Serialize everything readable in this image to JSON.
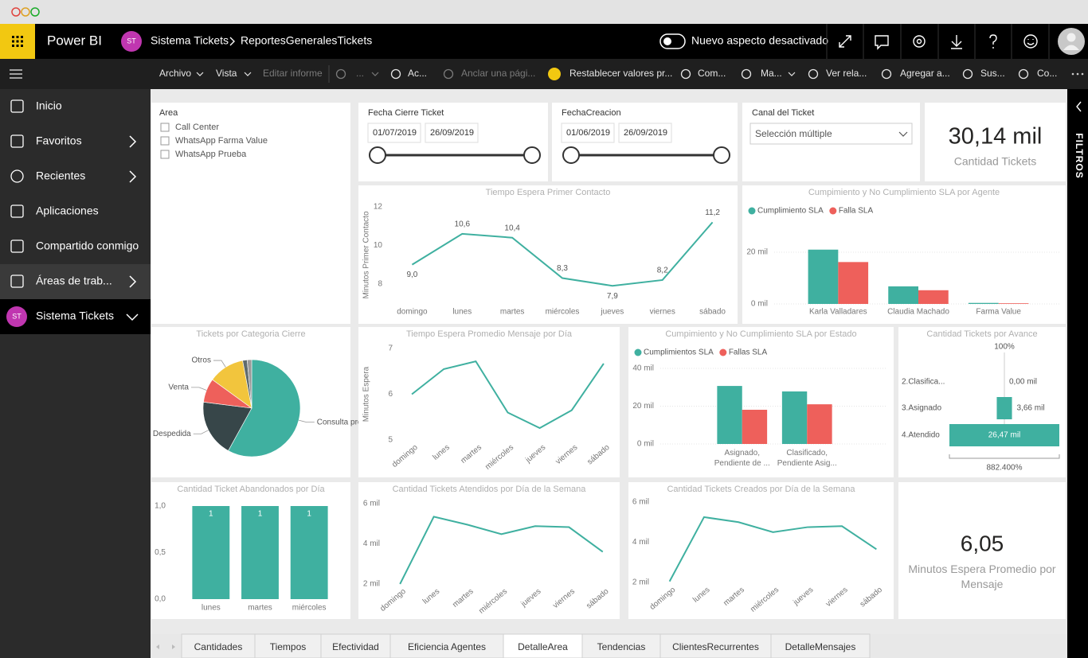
{
  "header": {
    "app_name": "Power BI",
    "avatar": "ST",
    "workspace": "Sistema Tickets",
    "report": "ReportesGeneralesTickets",
    "toggle_label": "Nuevo aspecto desactivado"
  },
  "toolbar": {
    "items": [
      {
        "text": "Archivo"
      },
      {
        "text": "Vista"
      },
      {
        "text": "Editar informe",
        "disabled": true
      },
      {
        "text": "...",
        "disabled": true
      },
      {
        "text": "Ac..."
      },
      {
        "text": "Anclar una pági...",
        "disabled": true
      },
      {
        "text": "Restablecer valores pr..."
      },
      {
        "text": "Com..."
      },
      {
        "text": "Ma..."
      },
      {
        "text": "Ver rela..."
      },
      {
        "text": "Agregar a..."
      },
      {
        "text": "Sus..."
      },
      {
        "text": "Co..."
      }
    ]
  },
  "nav": {
    "items": [
      "Inicio",
      "Favoritos",
      "Recientes",
      "Aplicaciones",
      "Compartido conmigo",
      "Áreas de trab...",
      "Sistema Tickets"
    ],
    "workspace_avatar": "ST"
  },
  "filters_pane": {
    "label": "FILTROS"
  },
  "slicers": [
    {
      "title": "Area",
      "items": [
        "Call Center",
        "WhatsApp Farma Value",
        "WhatsApp Prueba"
      ]
    },
    {
      "title": "Fecha Cierre Ticket",
      "start": "01/07/2019",
      "end": "26/09/2019"
    },
    {
      "title": "FechaCreacion",
      "start": "01/06/2019",
      "end": "26/09/2019"
    },
    {
      "title": "Canal del Ticket",
      "selection": "Selección múltiple"
    }
  ],
  "cards": [
    {
      "value": "30,14 mil",
      "label": "Cantidad Tickets"
    },
    {
      "value": "6,05",
      "label": "Minutos Espera Promedio por Mensaje"
    }
  ],
  "chart_data": [
    {
      "type": "line",
      "title": "Tiempo Espera  Primer Contacto",
      "y_label": "Minutos Primer Contacto",
      "categories": [
        "domingo",
        "lunes",
        "martes",
        "miércoles",
        "jueves",
        "viernes",
        "sábado"
      ],
      "series": [
        {
          "color": "#3fb0a0",
          "values": [
            9.0,
            10.6,
            10.4,
            8.3,
            7.9,
            8.2,
            11.2
          ],
          "value_labels": [
            "9,0",
            "10,6",
            "10,4",
            "8,3",
            "7,9",
            "8,2",
            "11,2"
          ]
        }
      ],
      "ylim": [
        7,
        12
      ],
      "yticks": [
        8,
        10,
        12
      ]
    },
    {
      "type": "bar",
      "title": "Cumpimiento y No Cumplimiento SLA por Agente",
      "categories": [
        "Karla Valladares",
        "Claudia Machado",
        "Farma Value"
      ],
      "series": [
        {
          "name": "Cumplimiento SLA",
          "color": "#3fb0a0",
          "values": [
            21000,
            6800,
            400
          ]
        },
        {
          "name": "Falla SLA",
          "color": "#ee605b",
          "values": [
            16200,
            5300,
            250
          ]
        }
      ],
      "ylim": [
        0,
        22000
      ],
      "yticks": [
        {
          "value": 0,
          "label": "0 mil"
        },
        {
          "value": 20000,
          "label": "20 mil"
        }
      ],
      "grid": true,
      "legend": "top-left"
    },
    {
      "type": "pie",
      "title": "Tickets por Categoria Cierre",
      "categories": [
        "Consulta precios",
        "Despedida",
        "Venta",
        "Otros",
        null,
        null
      ],
      "values": [
        58,
        19,
        8,
        12,
        1.5,
        1.5
      ],
      "colors": [
        "#3fb0a0",
        "#374649",
        "#ee605b",
        "#f2c53d",
        "#5f6b6d",
        "#9a9a9a"
      ]
    },
    {
      "type": "line",
      "title": "Tiempo Espera Promedio Mensaje por Día",
      "y_label": "Minutos Espera",
      "categories": [
        "domingo",
        "lunes",
        "martes",
        "miércoles",
        "jueves",
        "viernes",
        "sábado"
      ],
      "series": [
        {
          "color": "#3fb0a0",
          "values": [
            6.0,
            6.55,
            6.72,
            5.6,
            5.26,
            5.65,
            6.67
          ]
        }
      ],
      "ylim": [
        5,
        7
      ],
      "yticks": [
        5,
        6,
        7
      ]
    },
    {
      "type": "bar",
      "title": "Cumpimiento y No Cumplimiento SLA por Estado",
      "categories": [
        "Asignado, Pendiente de ...",
        "Clasificado, Pendiente Asig..."
      ],
      "series": [
        {
          "name": "Cumplimientos SLA",
          "color": "#3fb0a0",
          "values": [
            30700,
            27800
          ]
        },
        {
          "name": "Fallas SLA",
          "color": "#ee605b",
          "values": [
            18100,
            21000
          ]
        }
      ],
      "ylim": [
        0,
        40000
      ],
      "yticks": [
        {
          "value": 0,
          "label": "0 mil"
        },
        {
          "value": 20000,
          "label": "20 mil"
        },
        {
          "value": 40000,
          "label": "40 mil"
        }
      ],
      "grid": true,
      "legend": "top-left"
    },
    {
      "type": "funnel",
      "title": "Cantidad Tickets por Avance",
      "categories": [
        "2.Clasifica...",
        "3.Asignado",
        "4.Atendido"
      ],
      "values": [
        0,
        3660,
        26470
      ],
      "value_labels": [
        "0,00 mil",
        "3,66 mil",
        "26,47 mil"
      ],
      "color": "#3fb0a0",
      "top_label": "100%",
      "bottom_label": "882.400%"
    },
    {
      "type": "bar",
      "title": "Cantidad Ticket Abandonados por Día",
      "categories": [
        "lunes",
        "martes",
        "miércoles"
      ],
      "values": [
        1,
        1,
        1
      ],
      "color": "#3fb0a0",
      "ylim": [
        0,
        1
      ],
      "yticks": [
        {
          "value": 0,
          "label": "0,0"
        },
        {
          "value": 0.5,
          "label": "0,5"
        },
        {
          "value": 1,
          "label": "1,0"
        }
      ],
      "data_labels": true
    },
    {
      "type": "line",
      "title": "Cantidad Tickets Atendidos por Día de la Semana",
      "categories": [
        "domingo",
        "lunes",
        "martes",
        "miércoles",
        "jueves",
        "viernes",
        "sábado"
      ],
      "series": [
        {
          "color": "#3fb0a0",
          "values": [
            2000,
            5350,
            4950,
            4480,
            4880,
            4830,
            3600
          ]
        }
      ],
      "ylim": [
        2000,
        6000
      ],
      "yticks": [
        {
          "value": 2000,
          "label": "2 mil"
        },
        {
          "value": 4000,
          "label": "4 mil"
        },
        {
          "value": 6000,
          "label": "6 mil"
        }
      ]
    },
    {
      "type": "line",
      "title": "Cantidad Tickets Creados por Día de la Semana",
      "categories": [
        "domingo",
        "lunes",
        "martes",
        "miércoles",
        "jueves",
        "viernes",
        "sábado"
      ],
      "series": [
        {
          "color": "#3fb0a0",
          "values": [
            2050,
            5250,
            5000,
            4500,
            4750,
            4800,
            3650
          ]
        }
      ],
      "ylim": [
        2000,
        6000
      ],
      "yticks": [
        {
          "value": 2000,
          "label": "2 mil"
        },
        {
          "value": 4000,
          "label": "4 mil"
        },
        {
          "value": 6000,
          "label": "6 mil"
        }
      ]
    }
  ],
  "tabs": {
    "items": [
      "Cantidades",
      "Tiempos",
      "Efectividad",
      "Eficiencia Agentes",
      "DetalleArea",
      "Tendencias",
      "ClientesRecurrentes",
      "DetalleMensajes"
    ],
    "active": 4
  }
}
